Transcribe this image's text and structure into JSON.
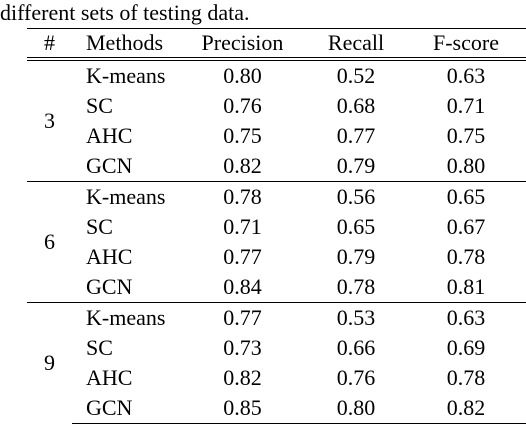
{
  "caption": "different sets of testing data.",
  "table": {
    "headers": [
      "#",
      "Methods",
      "Precision",
      "Recall",
      "F-score"
    ],
    "groups": [
      {
        "number": "3",
        "rows": [
          {
            "method": "K-means",
            "precision": "0.80",
            "recall": "0.52",
            "fscore": "0.63"
          },
          {
            "method": "SC",
            "precision": "0.76",
            "recall": "0.68",
            "fscore": "0.71"
          },
          {
            "method": "AHC",
            "precision": "0.75",
            "recall": "0.77",
            "fscore": "0.75"
          },
          {
            "method": "GCN",
            "precision": "0.82",
            "recall": "0.79",
            "fscore": "0.80"
          }
        ]
      },
      {
        "number": "6",
        "rows": [
          {
            "method": "K-means",
            "precision": "0.78",
            "recall": "0.56",
            "fscore": "0.65"
          },
          {
            "method": "SC",
            "precision": "0.71",
            "recall": "0.65",
            "fscore": "0.67"
          },
          {
            "method": "AHC",
            "precision": "0.77",
            "recall": "0.79",
            "fscore": "0.78"
          },
          {
            "method": "GCN",
            "precision": "0.84",
            "recall": "0.78",
            "fscore": "0.81"
          }
        ]
      },
      {
        "number": "9",
        "rows": [
          {
            "method": "K-means",
            "precision": "0.77",
            "recall": "0.53",
            "fscore": "0.63"
          },
          {
            "method": "SC",
            "precision": "0.73",
            "recall": "0.66",
            "fscore": "0.69"
          },
          {
            "method": "AHC",
            "precision": "0.82",
            "recall": "0.76",
            "fscore": "0.78"
          },
          {
            "method": "GCN",
            "precision": "0.85",
            "recall": "0.80",
            "fscore": "0.82"
          }
        ]
      }
    ]
  }
}
